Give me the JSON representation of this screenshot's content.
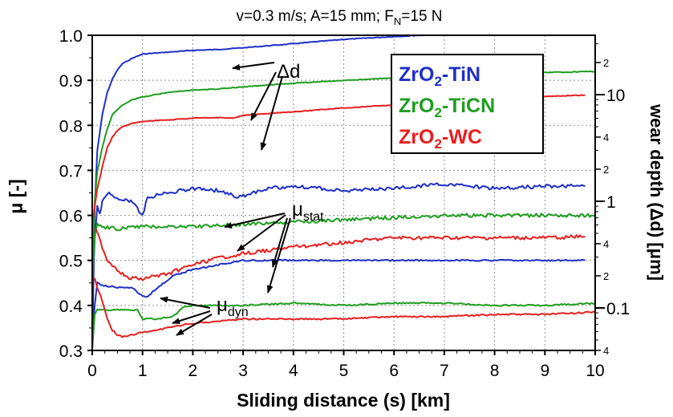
{
  "chart_data": {
    "type": "line",
    "title_parts": {
      "main": "v=0.3 m/s; A=15 mm; F",
      "sub": "N",
      "tail": "=15 N"
    },
    "xlabel": "Sliding distance (s) [km]",
    "ylabel": "μ [-]",
    "y2label": "wear depth (Δd) [μm]",
    "xlim": [
      0,
      10
    ],
    "ylim": [
      0.3,
      1.0
    ],
    "y2_scale": "log",
    "x_ticks": [
      "0",
      "1",
      "2",
      "3",
      "4",
      "5",
      "6",
      "7",
      "8",
      "9",
      "10"
    ],
    "y_ticks": [
      "0.3",
      "0.4",
      "0.5",
      "0.6",
      "0.7",
      "0.8",
      "0.9",
      "1.0"
    ],
    "y2_major_ticks": [
      {
        "label": "0.1",
        "value": 0.1
      },
      {
        "label": "1",
        "value": 1
      },
      {
        "label": "10",
        "value": 10
      }
    ],
    "y2_minor_ticks": [
      {
        "label": "4",
        "value": 0.04
      },
      {
        "label": "2",
        "value": 0.2
      },
      {
        "label": "4",
        "value": 0.4
      },
      {
        "label": "2",
        "value": 2
      },
      {
        "label": "4",
        "value": 4
      },
      {
        "label": "2",
        "value": 20
      }
    ],
    "grid": true,
    "legend": {
      "position": "top-right",
      "entries": [
        {
          "pre": "ZrO",
          "sub": "2",
          "post": "-TiN",
          "color": "#1f2fc8"
        },
        {
          "pre": "ZrO",
          "sub": "2",
          "post": "-TiCN",
          "color": "#1e9e1e"
        },
        {
          "pre": "ZrO",
          "sub": "2",
          "post": "-WC",
          "color": "#e81e1e"
        }
      ]
    },
    "annotations": [
      {
        "text": "Δd",
        "sub": ""
      },
      {
        "text": "μ",
        "sub": "stat"
      },
      {
        "text": "μ",
        "sub": "dyn"
      }
    ],
    "series": [
      {
        "name": "ZrO2-TiN",
        "quantity": "wear depth",
        "axis": "right",
        "color": "#1f2fc8",
        "x": [
          0,
          0.05,
          0.1,
          0.2,
          0.3,
          0.4,
          0.5,
          0.6,
          0.8,
          1.0,
          1.5,
          2.0,
          2.5,
          3.0,
          4.0,
          5.0,
          6.0,
          7.0,
          8.0,
          9.0,
          9.8
        ],
        "y": [
          0.04,
          0.9,
          3.0,
          6.5,
          10.5,
          14,
          17,
          19.5,
          22,
          24,
          25,
          26,
          26.5,
          27.5,
          30,
          33,
          35,
          37,
          39,
          40.5,
          41
        ]
      },
      {
        "name": "ZrO2-TiCN",
        "quantity": "wear depth",
        "axis": "right",
        "color": "#1e9e1e",
        "x": [
          0,
          0.05,
          0.1,
          0.2,
          0.3,
          0.4,
          0.6,
          0.8,
          1.0,
          1.5,
          2.0,
          2.5,
          3.0,
          4.0,
          5.0,
          6.0,
          7.0,
          8.0,
          9.0,
          10.0
        ],
        "y": [
          0.2,
          1.0,
          1.9,
          3.2,
          4.8,
          6.5,
          8.0,
          9.0,
          9.5,
          10.5,
          11.0,
          11.3,
          11.8,
          12.8,
          13.6,
          14.3,
          15.0,
          15.6,
          16.1,
          16.5
        ]
      },
      {
        "name": "ZrO2-WC",
        "quantity": "wear depth",
        "axis": "right",
        "color": "#e81e1e",
        "x": [
          0,
          0.05,
          0.1,
          0.2,
          0.3,
          0.4,
          0.5,
          0.6,
          0.8,
          1.0,
          1.5,
          2.0,
          2.5,
          2.8,
          3.0,
          4.0,
          5.0,
          6.0,
          7.0,
          8.0,
          9.0,
          9.8
        ],
        "y": [
          0.6,
          0.9,
          1.3,
          2.1,
          3.2,
          4.0,
          4.6,
          5.0,
          5.4,
          5.6,
          5.8,
          6.0,
          6.1,
          6.0,
          6.4,
          6.9,
          7.5,
          8.0,
          8.5,
          9.0,
          9.6,
          9.9
        ]
      },
      {
        "name": "ZrO2-TiN",
        "quantity": "μ_stat",
        "axis": "left",
        "color": "#1f2fc8",
        "x": [
          0,
          0.05,
          0.1,
          0.15,
          0.2,
          0.3,
          0.5,
          0.8,
          1.0,
          1.1,
          1.5,
          2.0,
          2.5,
          2.9,
          3.5,
          4.0,
          5.0,
          6.0,
          7.0,
          8.0,
          9.0,
          9.8
        ],
        "y": [
          0.4,
          0.55,
          0.62,
          0.6,
          0.63,
          0.65,
          0.64,
          0.63,
          0.6,
          0.64,
          0.65,
          0.66,
          0.655,
          0.64,
          0.66,
          0.665,
          0.655,
          0.66,
          0.67,
          0.66,
          0.665,
          0.665
        ]
      },
      {
        "name": "ZrO2-TiCN",
        "quantity": "μ_stat",
        "axis": "left",
        "color": "#1e9e1e",
        "x": [
          0,
          0.05,
          0.1,
          0.2,
          0.5,
          1.0,
          2.0,
          3.0,
          4.0,
          5.0,
          6.0,
          7.0,
          8.0,
          9.0,
          10.0
        ],
        "y": [
          0.45,
          0.56,
          0.58,
          0.575,
          0.57,
          0.575,
          0.575,
          0.58,
          0.585,
          0.59,
          0.595,
          0.6,
          0.6,
          0.6,
          0.6
        ]
      },
      {
        "name": "ZrO2-WC",
        "quantity": "μ_stat",
        "axis": "left",
        "color": "#e81e1e",
        "x": [
          0.05,
          0.1,
          0.2,
          0.3,
          0.5,
          0.7,
          1.0,
          1.5,
          2.0,
          2.5,
          3.0,
          4.0,
          5.0,
          6.0,
          7.0,
          8.0,
          9.0,
          9.8
        ],
        "y": [
          0.57,
          0.56,
          0.53,
          0.5,
          0.48,
          0.46,
          0.46,
          0.47,
          0.49,
          0.505,
          0.515,
          0.53,
          0.54,
          0.55,
          0.55,
          0.55,
          0.55,
          0.553
        ]
      },
      {
        "name": "ZrO2-TiN",
        "quantity": "μ_dyn",
        "axis": "left",
        "color": "#1f2fc8",
        "x": [
          0,
          0.05,
          0.1,
          0.2,
          0.5,
          0.8,
          0.9,
          1.0,
          1.1,
          1.3,
          1.6,
          2.0,
          2.5,
          3.0,
          4.0,
          5.0,
          6.0,
          7.0,
          8.0,
          9.0,
          9.8
        ],
        "y": [
          0.33,
          0.4,
          0.45,
          0.445,
          0.44,
          0.44,
          0.43,
          0.42,
          0.42,
          0.44,
          0.465,
          0.48,
          0.49,
          0.5,
          0.5,
          0.5,
          0.5,
          0.5,
          0.5,
          0.5,
          0.5
        ]
      },
      {
        "name": "ZrO2-TiCN",
        "quantity": "μ_dyn",
        "axis": "left",
        "color": "#1e9e1e",
        "x": [
          0,
          0.05,
          0.1,
          0.2,
          0.5,
          0.9,
          1.0,
          1.3,
          1.6,
          1.8,
          2.0,
          3.0,
          4.0,
          5.0,
          6.0,
          7.0,
          8.0,
          9.0,
          10.0
        ],
        "y": [
          0.3,
          0.38,
          0.39,
          0.39,
          0.39,
          0.39,
          0.37,
          0.37,
          0.375,
          0.395,
          0.4,
          0.4,
          0.405,
          0.4,
          0.405,
          0.405,
          0.4,
          0.4,
          0.405
        ]
      },
      {
        "name": "ZrO2-WC",
        "quantity": "μ_dyn",
        "axis": "left",
        "color": "#e81e1e",
        "x": [
          0.05,
          0.1,
          0.2,
          0.3,
          0.4,
          0.5,
          0.6,
          0.8,
          1.0,
          1.5,
          2.0,
          2.5,
          3.0,
          4.0,
          5.0,
          6.0,
          7.0,
          8.0,
          9.0,
          10.0
        ],
        "y": [
          0.46,
          0.44,
          0.41,
          0.37,
          0.345,
          0.335,
          0.33,
          0.335,
          0.34,
          0.35,
          0.36,
          0.365,
          0.37,
          0.37,
          0.37,
          0.375,
          0.375,
          0.38,
          0.38,
          0.385
        ]
      }
    ]
  }
}
